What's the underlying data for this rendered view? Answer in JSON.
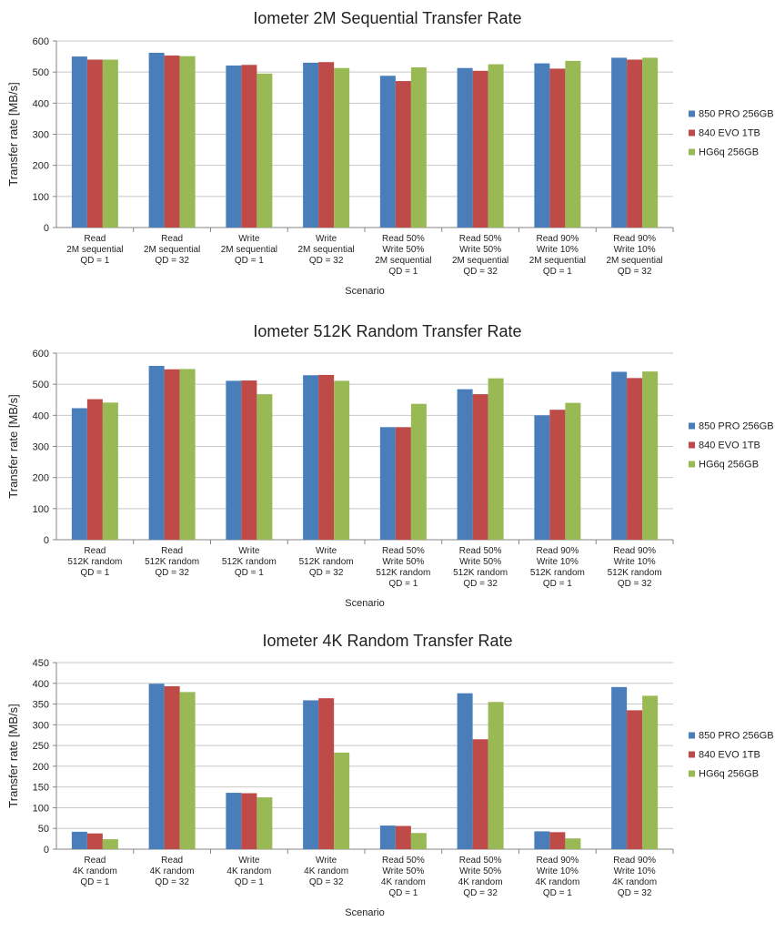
{
  "colors": {
    "series": [
      "#4a7ebb",
      "#be4b48",
      "#98b954"
    ],
    "grid": "#c8c8c8",
    "axis": "#868686"
  },
  "chart_data": [
    {
      "type": "bar",
      "title": "Iometer 2M Sequential Transfer Rate",
      "xlabel": "Scenario",
      "ylabel": "Transfer rate [MB/s]",
      "ylim": [
        0,
        600
      ],
      "yticks": [
        "0",
        "100",
        "200",
        "300",
        "400",
        "500",
        "600"
      ],
      "grid": true,
      "legend_position": "right",
      "categories": [
        [
          "Read",
          "2M sequential",
          "QD = 1"
        ],
        [
          "Read",
          "2M sequential",
          "QD = 32"
        ],
        [
          "Write",
          "2M sequential",
          "QD = 1"
        ],
        [
          "Write",
          "2M sequential",
          "QD = 32"
        ],
        [
          "Read 50%",
          "Write 50%",
          "2M sequential",
          "QD = 1"
        ],
        [
          "Read 50%",
          "Write 50%",
          "2M sequential",
          "QD = 32"
        ],
        [
          "Read 90%",
          "Write 10%",
          "2M sequential",
          "QD = 1"
        ],
        [
          "Read 90%",
          "Write 10%",
          "2M sequential",
          "QD = 32"
        ]
      ],
      "series": [
        {
          "name": "850 PRO 256GB",
          "values": [
            550,
            562,
            521,
            530,
            488,
            513,
            528,
            546
          ]
        },
        {
          "name": "840 EVO 1TB",
          "values": [
            540,
            553,
            523,
            532,
            471,
            504,
            511,
            540
          ]
        },
        {
          "name": "HG6q 256GB",
          "values": [
            540,
            551,
            495,
            513,
            515,
            525,
            536,
            546
          ]
        }
      ]
    },
    {
      "type": "bar",
      "title": "Iometer 512K Random Transfer Rate",
      "xlabel": "Scenario",
      "ylabel": "Transfer rate [MB/s]",
      "ylim": [
        0,
        600
      ],
      "yticks": [
        "0",
        "100",
        "200",
        "300",
        "400",
        "500",
        "600"
      ],
      "grid": true,
      "legend_position": "right",
      "categories": [
        [
          "Read",
          "512K random",
          "QD = 1"
        ],
        [
          "Read",
          "512K random",
          "QD = 32"
        ],
        [
          "Write",
          "512K random",
          "QD = 1"
        ],
        [
          "Write",
          "512K random",
          "QD = 32"
        ],
        [
          "Read 50%",
          "Write 50%",
          "512K random",
          "QD = 1"
        ],
        [
          "Read 50%",
          "Write 50%",
          "512K random",
          "QD = 32"
        ],
        [
          "Read 90%",
          "Write 10%",
          "512K random",
          "QD = 1"
        ],
        [
          "Read 90%",
          "Write 10%",
          "512K random",
          "QD = 32"
        ]
      ],
      "series": [
        {
          "name": "850 PRO 256GB",
          "values": [
            423,
            559,
            511,
            529,
            362,
            484,
            400,
            540
          ]
        },
        {
          "name": "840 EVO 1TB",
          "values": [
            452,
            548,
            512,
            530,
            362,
            468,
            418,
            520
          ]
        },
        {
          "name": "HG6q 256GB",
          "values": [
            441,
            549,
            468,
            511,
            437,
            519,
            440,
            541
          ]
        }
      ]
    },
    {
      "type": "bar",
      "title": "Iometer 4K Random Transfer Rate",
      "xlabel": "Scenario",
      "ylabel": "Transfer rate [MB/s]",
      "ylim": [
        0,
        450
      ],
      "yticks": [
        "0",
        "50",
        "100",
        "150",
        "200",
        "250",
        "300",
        "350",
        "400",
        "450"
      ],
      "grid": true,
      "legend_position": "right",
      "categories": [
        [
          "Read",
          "4K random",
          "QD = 1"
        ],
        [
          "Read",
          "4K random",
          "QD = 32"
        ],
        [
          "Write",
          "4K random",
          "QD = 1"
        ],
        [
          "Write",
          "4K random",
          "QD = 32"
        ],
        [
          "Read 50%",
          "Write 50%",
          "4K random",
          "QD = 1"
        ],
        [
          "Read 50%",
          "Write 50%",
          "4K random",
          "QD = 32"
        ],
        [
          "Read 90%",
          "Write 10%",
          "4K random",
          "QD = 1"
        ],
        [
          "Read 90%",
          "Write 10%",
          "4K random",
          "QD = 32"
        ]
      ],
      "series": [
        {
          "name": "850 PRO 256GB",
          "values": [
            42,
            399,
            136,
            359,
            57,
            376,
            43,
            391
          ]
        },
        {
          "name": "840 EVO 1TB",
          "values": [
            38,
            393,
            135,
            364,
            56,
            265,
            41,
            335
          ]
        },
        {
          "name": "HG6q 256GB",
          "values": [
            24,
            379,
            125,
            233,
            39,
            355,
            26,
            370
          ]
        }
      ]
    }
  ]
}
